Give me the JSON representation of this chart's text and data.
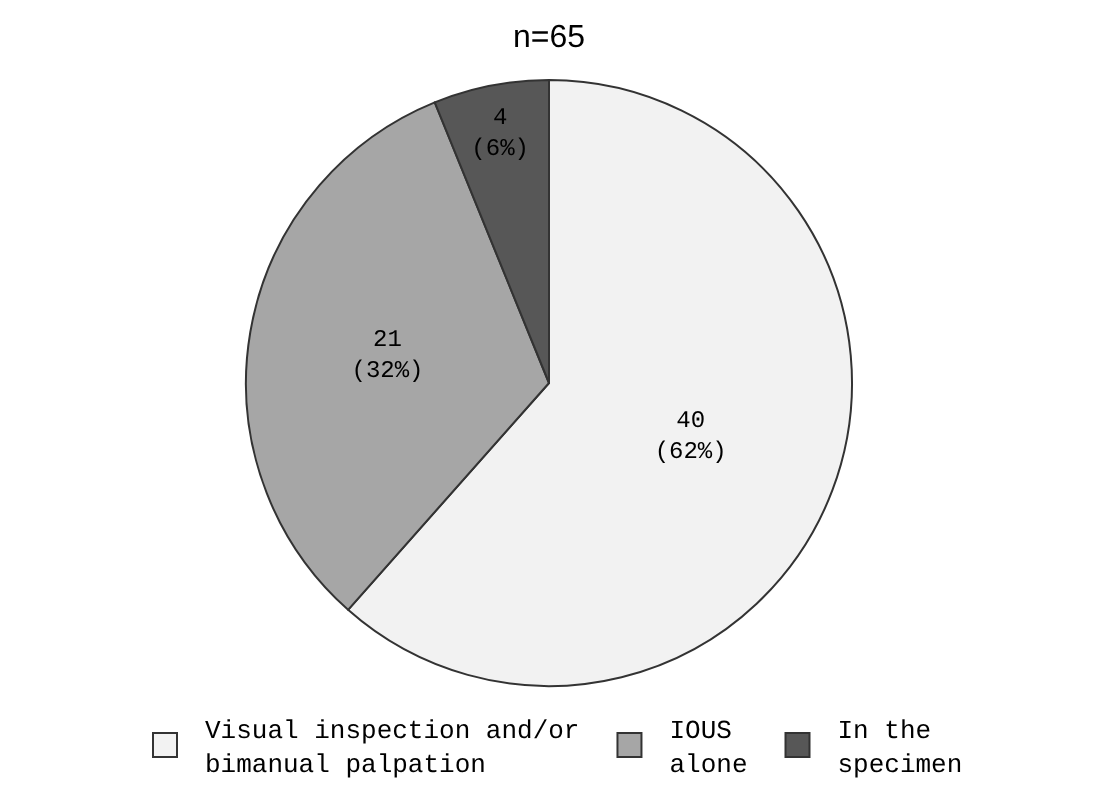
{
  "chart_data": {
    "type": "pie",
    "title": "n=65",
    "categories": [
      "Visual inspection and/or\nbimanual palpation",
      "IOUS\nalone",
      "In the\nspecimen"
    ],
    "values": [
      40,
      21,
      4
    ],
    "colors": [
      "#f2f2f2",
      "#a6a6a6",
      "#575757"
    ],
    "value_labels": [
      "40\n(62%)",
      "21\n(32%)",
      "4\n(6%)"
    ],
    "legend": "bottom"
  }
}
